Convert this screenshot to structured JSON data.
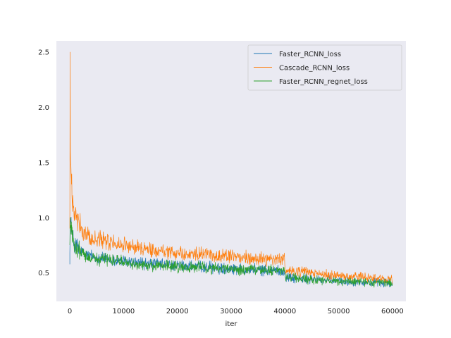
{
  "chart_data": {
    "type": "line",
    "title": "",
    "xlabel": "iter",
    "ylabel": "",
    "xlim": [
      -2500,
      62500
    ],
    "ylim": [
      0.24,
      2.6
    ],
    "xticks": [
      0,
      10000,
      20000,
      30000,
      40000,
      50000,
      60000
    ],
    "yticks": [
      0.5,
      1.0,
      1.5,
      2.0,
      2.5
    ],
    "grid": false,
    "legend_position": "top-right",
    "background": "#eaeaf2",
    "series": [
      {
        "name": "Faster_RCNN_loss",
        "color": "#1f77b4",
        "x": [
          0,
          100,
          200,
          300,
          400,
          500,
          700,
          1000,
          1500,
          2000,
          3000,
          4000,
          5000,
          6000,
          7000,
          8000,
          9000,
          10000,
          11000,
          12000,
          13000,
          14000,
          15000,
          16000,
          17000,
          18000,
          19000,
          20000,
          22000,
          24000,
          26000,
          28000,
          30000,
          32000,
          34000,
          36000,
          38000,
          39900,
          40100,
          42000,
          44000,
          46000,
          48000,
          50000,
          52000,
          54000,
          56000,
          58000,
          60000
        ],
        "y": [
          0.68,
          0.92,
          0.98,
          0.9,
          0.85,
          0.82,
          0.78,
          0.75,
          0.72,
          0.69,
          0.66,
          0.65,
          0.64,
          0.63,
          0.62,
          0.61,
          0.61,
          0.6,
          0.6,
          0.59,
          0.59,
          0.58,
          0.58,
          0.58,
          0.57,
          0.57,
          0.57,
          0.56,
          0.56,
          0.55,
          0.55,
          0.54,
          0.54,
          0.53,
          0.53,
          0.52,
          0.52,
          0.52,
          0.46,
          0.45,
          0.44,
          0.44,
          0.43,
          0.43,
          0.42,
          0.42,
          0.41,
          0.41,
          0.4
        ]
      },
      {
        "name": "Cascade_RCNN_loss",
        "color": "#ff7f0e",
        "x": [
          0,
          50,
          100,
          200,
          300,
          400,
          500,
          700,
          1000,
          1500,
          2000,
          3000,
          4000,
          5000,
          6000,
          7000,
          8000,
          9000,
          10000,
          11000,
          12000,
          13000,
          14000,
          15000,
          16000,
          17000,
          18000,
          19000,
          20000,
          22000,
          24000,
          26000,
          28000,
          30000,
          32000,
          34000,
          36000,
          38000,
          39900,
          40100,
          42000,
          44000,
          46000,
          48000,
          50000,
          52000,
          54000,
          56000,
          58000,
          60000
        ],
        "y": [
          0.9,
          2.5,
          1.6,
          1.48,
          1.3,
          1.2,
          1.12,
          1.05,
          0.99,
          0.95,
          0.9,
          0.85,
          0.82,
          0.8,
          0.79,
          0.78,
          0.77,
          0.76,
          0.75,
          0.74,
          0.73,
          0.72,
          0.72,
          0.71,
          0.7,
          0.7,
          0.69,
          0.69,
          0.68,
          0.67,
          0.66,
          0.66,
          0.65,
          0.64,
          0.64,
          0.63,
          0.62,
          0.62,
          0.62,
          0.52,
          0.51,
          0.5,
          0.49,
          0.48,
          0.47,
          0.46,
          0.46,
          0.45,
          0.45,
          0.44
        ]
      },
      {
        "name": "Faster_RCNN_regnet_loss",
        "color": "#2ca02c",
        "x": [
          0,
          100,
          200,
          300,
          400,
          500,
          700,
          1000,
          1500,
          2000,
          3000,
          4000,
          5000,
          6000,
          7000,
          8000,
          9000,
          10000,
          11000,
          12000,
          13000,
          14000,
          15000,
          16000,
          17000,
          18000,
          19000,
          20000,
          22000,
          24000,
          26000,
          28000,
          30000,
          32000,
          34000,
          36000,
          38000,
          39900,
          40100,
          42000,
          44000,
          46000,
          48000,
          50000,
          52000,
          54000,
          56000,
          58000,
          60000
        ],
        "y": [
          0.75,
          1.0,
          0.93,
          0.88,
          0.84,
          0.8,
          0.77,
          0.74,
          0.71,
          0.69,
          0.66,
          0.64,
          0.63,
          0.62,
          0.61,
          0.6,
          0.6,
          0.59,
          0.59,
          0.58,
          0.58,
          0.57,
          0.57,
          0.57,
          0.56,
          0.56,
          0.56,
          0.55,
          0.55,
          0.55,
          0.54,
          0.54,
          0.53,
          0.53,
          0.52,
          0.52,
          0.52,
          0.51,
          0.46,
          0.45,
          0.44,
          0.43,
          0.43,
          0.42,
          0.42,
          0.42,
          0.41,
          0.41,
          0.41
        ]
      }
    ]
  }
}
